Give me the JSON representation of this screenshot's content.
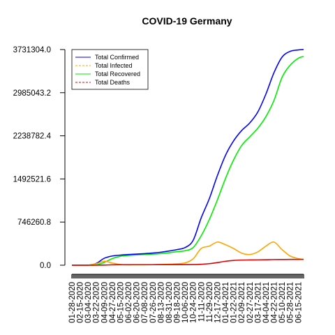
{
  "chart_data": {
    "type": "line",
    "title": "COVID-19 Germany",
    "xlabel": "",
    "ylabel": "",
    "ylim": [
      0,
      3731304.0
    ],
    "y_ticks": [
      "0.0",
      "746260.8",
      "1492521.6",
      "2238782.4",
      "2985043.2",
      "3731304.0"
    ],
    "x_tick_labels": [
      "01-28-2020",
      "02-15-2020",
      "03-04-2020",
      "03-22-2020",
      "04-09-2020",
      "04-27-2020",
      "05-15-2020",
      "06-02-2020",
      "06-20-2020",
      "07-08-2020",
      "07-26-2020",
      "08-13-2020",
      "08-31-2020",
      "09-18-2020",
      "10-06-2020",
      "10-24-2020",
      "11-11-2020",
      "11-29-2020",
      "12-17-2020",
      "01-04-2021",
      "01-22-2021",
      "02-09-2021",
      "02-27-2021",
      "03-17-2021",
      "04-04-2021",
      "04-22-2021",
      "05-10-2021",
      "05-28-2021",
      "06-15-2021"
    ],
    "x": [
      "01-28-2020",
      "02-15-2020",
      "03-04-2020",
      "03-22-2020",
      "04-09-2020",
      "04-27-2020",
      "05-15-2020",
      "06-02-2020",
      "06-20-2020",
      "07-08-2020",
      "07-26-2020",
      "08-13-2020",
      "08-31-2020",
      "09-18-2020",
      "10-06-2020",
      "10-24-2020",
      "11-11-2020",
      "11-29-2020",
      "12-17-2020",
      "01-04-2021",
      "01-22-2021",
      "02-09-2021",
      "02-27-2021",
      "03-17-2021",
      "04-04-2021",
      "04-22-2021",
      "05-10-2021",
      "05-28-2021",
      "06-15-2021",
      "06-27-2021"
    ],
    "legend_position": "top-left",
    "grid": false,
    "series": [
      {
        "name": "Total Confirmed",
        "color": "#0000ff",
        "values": [
          0,
          0,
          400,
          30000,
          120000,
          160000,
          175000,
          185000,
          192000,
          200000,
          210000,
          225000,
          245000,
          270000,
          305000,
          430000,
          820000,
          1150000,
          1550000,
          1900000,
          2150000,
          2330000,
          2460000,
          2650000,
          2960000,
          3330000,
          3600000,
          3700000,
          3725000,
          3731304
        ]
      },
      {
        "name": "Total Infected",
        "color": "#ffa500",
        "values": [
          0,
          0,
          300,
          25000,
          68000,
          38000,
          12000,
          7000,
          6000,
          7000,
          9000,
          12000,
          17000,
          25000,
          40000,
          110000,
          290000,
          330000,
          400000,
          355000,
          290000,
          210000,
          185000,
          230000,
          330000,
          400000,
          270000,
          160000,
          115000,
          100000
        ]
      },
      {
        "name": "Total Recovered",
        "color": "#00ee00",
        "values": [
          0,
          0,
          100,
          3000,
          48000,
          115000,
          155000,
          170000,
          178000,
          185000,
          192000,
          202000,
          215000,
          235000,
          250000,
          305000,
          510000,
          790000,
          1130000,
          1500000,
          1820000,
          2070000,
          2220000,
          2370000,
          2570000,
          2850000,
          3250000,
          3460000,
          3580000,
          3610000
        ]
      },
      {
        "name": "Total Deaths",
        "color": "#dd0000",
        "values": [
          0,
          0,
          0,
          400,
          2500,
          6500,
          8000,
          8800,
          9000,
          9100,
          9200,
          9300,
          9400,
          9500,
          9700,
          11000,
          16000,
          27000,
          46000,
          68000,
          82000,
          89000,
          91000,
          92000,
          94000,
          98000,
          99000,
          100000,
          100500,
          101000
        ]
      }
    ]
  }
}
